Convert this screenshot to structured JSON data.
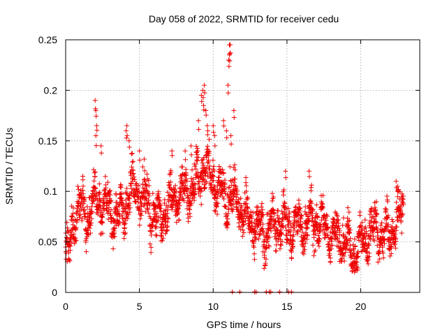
{
  "chart_data": {
    "type": "scatter",
    "title": "Day 058 of 2022, SRMTID for receiver cedu",
    "xlabel": "GPS time / hours",
    "ylabel": "SRMTID / TECUs",
    "xlim": [
      0,
      24
    ],
    "ylim": [
      0,
      0.25
    ],
    "xticks": [
      0,
      5,
      10,
      15,
      20
    ],
    "xtick_labels": [
      "0",
      "5",
      "10",
      "15",
      "20"
    ],
    "yticks": [
      0,
      0.05,
      0.1,
      0.15,
      0.2,
      0.25
    ],
    "ytick_labels": [
      "0",
      "0.05",
      "0.1",
      "0.15",
      "0.2",
      "0.25"
    ],
    "grid": true,
    "marker": "plus",
    "color": "#ee0000",
    "series": [
      {
        "name": "SRMTID",
        "trend": [
          [
            0.0,
            0.045
          ],
          [
            0.2,
            0.035
          ],
          [
            0.5,
            0.07
          ],
          [
            1.0,
            0.085
          ],
          [
            1.5,
            0.075
          ],
          [
            2.0,
            0.09
          ],
          [
            2.5,
            0.085
          ],
          [
            3.0,
            0.08
          ],
          [
            3.5,
            0.075
          ],
          [
            4.0,
            0.085
          ],
          [
            4.5,
            0.1
          ],
          [
            5.0,
            0.1
          ],
          [
            5.5,
            0.09
          ],
          [
            6.0,
            0.075
          ],
          [
            6.5,
            0.075
          ],
          [
            7.0,
            0.085
          ],
          [
            7.5,
            0.095
          ],
          [
            8.0,
            0.1
          ],
          [
            8.5,
            0.1
          ],
          [
            9.0,
            0.115
          ],
          [
            9.5,
            0.125
          ],
          [
            10.0,
            0.11
          ],
          [
            10.5,
            0.1
          ],
          [
            11.0,
            0.095
          ],
          [
            11.5,
            0.095
          ],
          [
            12.0,
            0.08
          ],
          [
            12.5,
            0.07
          ],
          [
            13.0,
            0.06
          ],
          [
            13.5,
            0.06
          ],
          [
            14.0,
            0.065
          ],
          [
            14.5,
            0.07
          ],
          [
            15.0,
            0.065
          ],
          [
            15.5,
            0.065
          ],
          [
            16.0,
            0.065
          ],
          [
            16.5,
            0.07
          ],
          [
            17.0,
            0.07
          ],
          [
            17.5,
            0.065
          ],
          [
            18.0,
            0.06
          ],
          [
            18.5,
            0.055
          ],
          [
            19.0,
            0.05
          ],
          [
            19.5,
            0.04
          ],
          [
            20.0,
            0.045
          ],
          [
            20.5,
            0.06
          ],
          [
            21.0,
            0.065
          ],
          [
            21.5,
            0.055
          ],
          [
            22.0,
            0.06
          ],
          [
            22.5,
            0.07
          ],
          [
            22.9,
            0.085
          ]
        ],
        "spikes": [
          [
            2.0,
            0.19
          ],
          [
            2.05,
            0.18
          ],
          [
            2.1,
            0.165
          ],
          [
            2.05,
            0.155
          ],
          [
            2.4,
            0.145
          ],
          [
            4.1,
            0.16
          ],
          [
            4.15,
            0.165
          ],
          [
            4.3,
            0.15
          ],
          [
            5.0,
            0.14
          ],
          [
            7.2,
            0.14
          ],
          [
            8.1,
            0.14
          ],
          [
            8.5,
            0.145
          ],
          [
            9.2,
            0.195
          ],
          [
            9.3,
            0.2
          ],
          [
            9.4,
            0.205
          ],
          [
            9.35,
            0.185
          ],
          [
            9.5,
            0.18
          ],
          [
            9.6,
            0.165
          ],
          [
            9.0,
            0.17
          ],
          [
            10.0,
            0.165
          ],
          [
            10.1,
            0.155
          ],
          [
            10.7,
            0.17
          ],
          [
            10.9,
            0.16
          ],
          [
            11.0,
            0.205
          ],
          [
            11.05,
            0.23
          ],
          [
            11.1,
            0.235
          ],
          [
            11.1,
            0.245
          ],
          [
            11.15,
            0.245
          ],
          [
            11.4,
            0.18
          ],
          [
            11.2,
            0.155
          ],
          [
            14.9,
            0.12
          ],
          [
            16.5,
            0.12
          ],
          [
            22.4,
            0.11
          ],
          [
            22.5,
            0.105
          ]
        ],
        "zeros": [
          11.3,
          11.8,
          12.8,
          12.9,
          13.6,
          13.8,
          13.9,
          14.5,
          15.1,
          15.3
        ]
      }
    ]
  }
}
